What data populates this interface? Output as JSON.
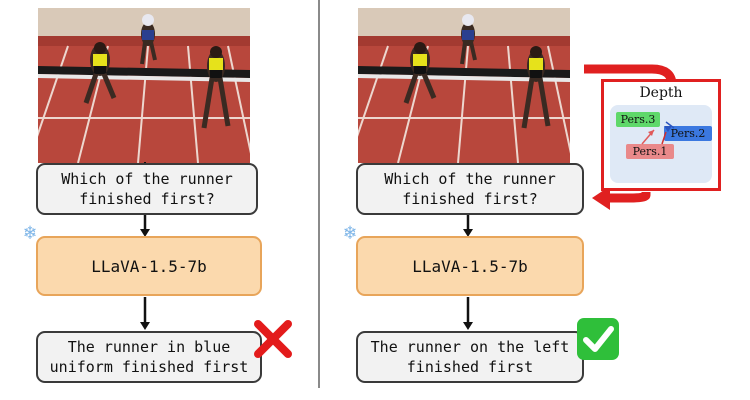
{
  "left_panel": {
    "question": "Which of the runner\nfinished first?",
    "model": "LLaVA-1.5-7b",
    "answer": "The runner in blue\nuniform finished first",
    "result": "incorrect"
  },
  "right_panel": {
    "question": "Which of the runner\nfinished first?",
    "model": "LLaVA-1.5-7b",
    "answer": "The runner on the left\nfinished first",
    "result": "correct"
  },
  "depth_panel": {
    "title": "Depth",
    "labels": [
      "Pers.3",
      "Pers.2",
      "Pers.1"
    ]
  },
  "colors": {
    "question_fill": "#f2f2f2",
    "model_fill": "#fbd9ad",
    "model_border": "#e8a55a",
    "depth_border": "#e02020",
    "pers3": "#5fd86a",
    "pers2": "#3b78e0",
    "pers1": "#e9898a",
    "check": "#2fbf3a",
    "cross": "#e31b1b"
  }
}
